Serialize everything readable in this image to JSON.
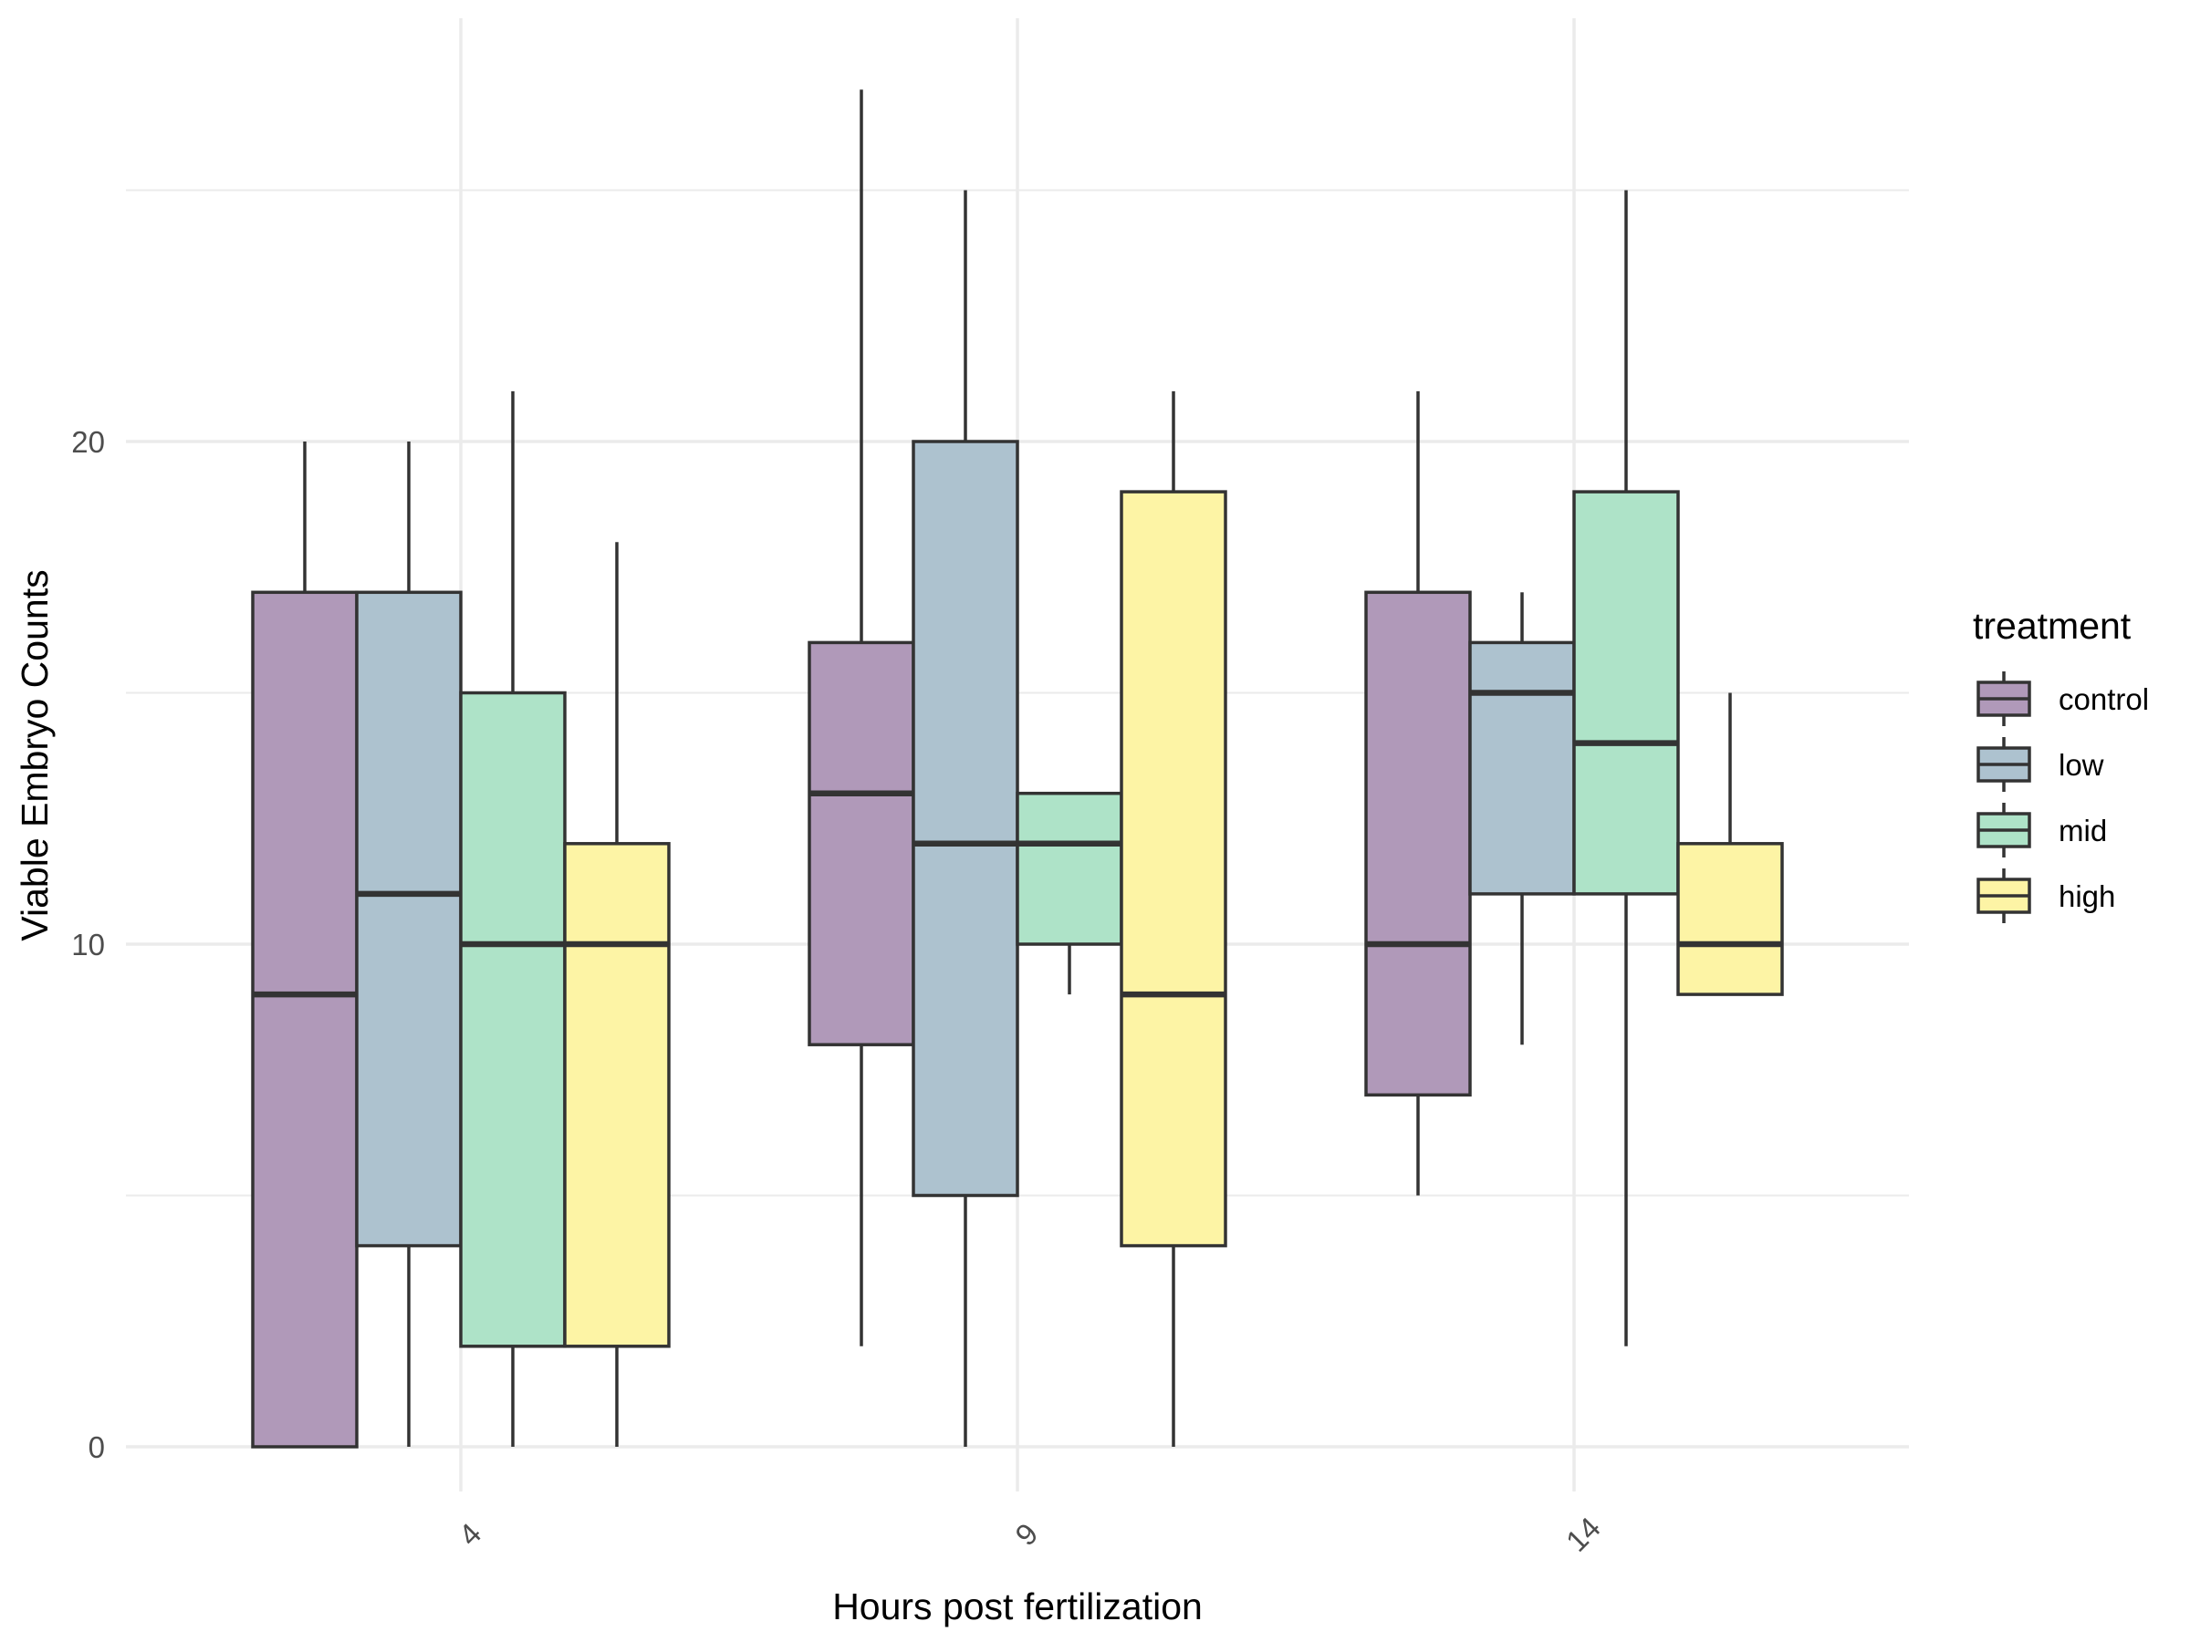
{
  "chart_data": {
    "type": "box",
    "title": "",
    "xlabel": "Hours post fertilization",
    "ylabel": "Viable Embryo Counts",
    "categories": [
      "4",
      "9",
      "14"
    ],
    "y_ticks": [
      "0",
      "10",
      "20"
    ],
    "ylim": [
      -1.5,
      28.3
    ],
    "grid": true,
    "x_tick_rotation_deg": -45,
    "legend": {
      "title": "treatment",
      "position": "right"
    },
    "series": [
      {
        "name": "control",
        "color": "#b099b9",
        "boxes": [
          {
            "category": "4",
            "whisker_low": 0,
            "q1": 0,
            "median": 9,
            "q3": 17,
            "whisker_high": 20
          },
          {
            "category": "9",
            "whisker_low": 2,
            "q1": 8,
            "median": 13,
            "q3": 16,
            "whisker_high": 27
          },
          {
            "category": "14",
            "whisker_low": 5,
            "q1": 7,
            "median": 10,
            "q3": 17,
            "whisker_high": 21
          }
        ]
      },
      {
        "name": "low",
        "color": "#adc2cf",
        "boxes": [
          {
            "category": "4",
            "whisker_low": 0,
            "q1": 4,
            "median": 11,
            "q3": 17,
            "whisker_high": 20
          },
          {
            "category": "9",
            "whisker_low": 0,
            "q1": 5,
            "median": 12,
            "q3": 20,
            "whisker_high": 25
          },
          {
            "category": "14",
            "whisker_low": 8,
            "q1": 11,
            "median": 15,
            "q3": 16,
            "whisker_high": 17
          }
        ]
      },
      {
        "name": "mid",
        "color": "#aee3c8",
        "boxes": [
          {
            "category": "4",
            "whisker_low": 0,
            "q1": 2,
            "median": 10,
            "q3": 15,
            "whisker_high": 21
          },
          {
            "category": "9",
            "whisker_low": 9,
            "q1": 10,
            "median": 12,
            "q3": 13,
            "whisker_high": 13
          },
          {
            "category": "14",
            "whisker_low": 2,
            "q1": 11,
            "median": 14,
            "q3": 19,
            "whisker_high": 25
          }
        ]
      },
      {
        "name": "high",
        "color": "#fdf4a5",
        "boxes": [
          {
            "category": "4",
            "whisker_low": 0,
            "q1": 2,
            "median": 10,
            "q3": 12,
            "whisker_high": 18
          },
          {
            "category": "9",
            "whisker_low": 0,
            "q1": 4,
            "median": 9,
            "q3": 19,
            "whisker_high": 21
          },
          {
            "category": "14",
            "whisker_low": 9,
            "q1": 9,
            "median": 10,
            "q3": 12,
            "whisker_high": 15
          }
        ]
      }
    ]
  }
}
